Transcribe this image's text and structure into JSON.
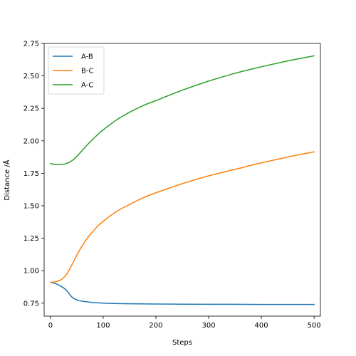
{
  "chart_data": {
    "type": "line",
    "title": "",
    "xlabel": "Steps",
    "ylabel": "Distance /Å",
    "xlim": [
      -12,
      512
    ],
    "ylim": [
      0.65,
      2.75
    ],
    "xticks": [
      0,
      100,
      200,
      300,
      400,
      500
    ],
    "yticks": [
      0.75,
      1.0,
      1.25,
      1.5,
      1.75,
      2.0,
      2.25,
      2.5,
      2.75
    ],
    "grid": false,
    "legend": "top-left",
    "series": [
      {
        "name": "A-B",
        "color": "#1f77b4",
        "x": [
          0,
          10,
          20,
          30,
          40,
          50,
          60,
          70,
          80,
          100,
          125,
          150,
          200,
          250,
          300,
          350,
          400,
          450,
          500
        ],
        "y": [
          0.91,
          0.9,
          0.88,
          0.85,
          0.8,
          0.775,
          0.765,
          0.76,
          0.755,
          0.75,
          0.747,
          0.745,
          0.743,
          0.742,
          0.741,
          0.741,
          0.74,
          0.74,
          0.74
        ]
      },
      {
        "name": "B-C",
        "color": "#ff7f0e",
        "x": [
          0,
          10,
          20,
          30,
          40,
          50,
          60,
          70,
          80,
          90,
          100,
          125,
          150,
          175,
          200,
          250,
          300,
          350,
          400,
          450,
          500
        ],
        "y": [
          0.91,
          0.915,
          0.93,
          0.97,
          1.04,
          1.12,
          1.19,
          1.25,
          1.3,
          1.345,
          1.38,
          1.455,
          1.51,
          1.56,
          1.6,
          1.67,
          1.73,
          1.78,
          1.83,
          1.875,
          1.915
        ]
      },
      {
        "name": "A-C",
        "color": "#2ca02c",
        "x": [
          0,
          10,
          20,
          30,
          40,
          50,
          60,
          70,
          80,
          90,
          100,
          125,
          150,
          175,
          200,
          250,
          300,
          350,
          400,
          450,
          500
        ],
        "y": [
          1.825,
          1.818,
          1.818,
          1.825,
          1.845,
          1.88,
          1.925,
          1.97,
          2.01,
          2.05,
          2.085,
          2.16,
          2.22,
          2.27,
          2.31,
          2.39,
          2.46,
          2.52,
          2.57,
          2.615,
          2.655
        ]
      }
    ]
  }
}
